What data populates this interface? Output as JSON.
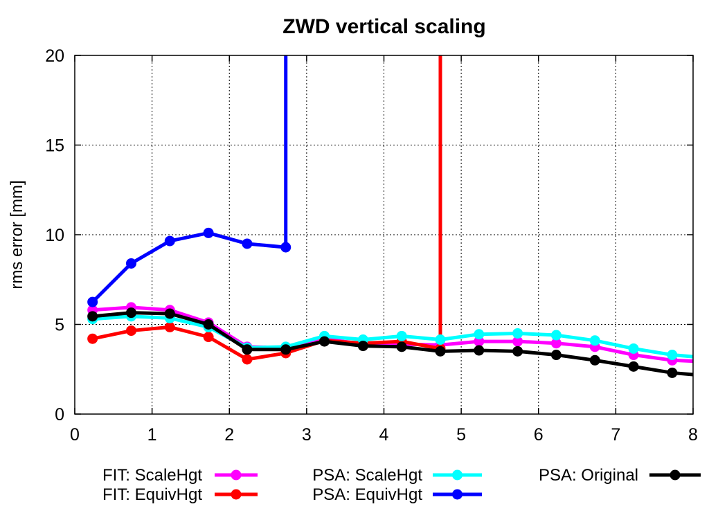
{
  "chart_data": {
    "type": "line",
    "title": "ZWD vertical scaling",
    "xlabel": "",
    "ylabel": "rms error [mm]",
    "xlim": [
      0,
      8
    ],
    "ylim": [
      0,
      20
    ],
    "xticks": [
      "0",
      "1",
      "2",
      "3",
      "4",
      "5",
      "6",
      "7",
      "8"
    ],
    "yticks": [
      "0",
      "5",
      "10",
      "15",
      "20"
    ],
    "grid": true,
    "legend_position": "bottom",
    "series": [
      {
        "name": "FIT: ScaleHgt",
        "color": "#ff00ff",
        "points": [
          [
            0.23,
            5.8
          ],
          [
            0.73,
            5.95
          ],
          [
            1.23,
            5.8
          ],
          [
            1.73,
            5.1
          ],
          [
            2.23,
            3.75
          ],
          [
            2.73,
            3.7
          ],
          [
            3.23,
            4.2
          ],
          [
            3.73,
            3.9
          ],
          [
            4.23,
            3.9
          ],
          [
            4.73,
            3.85
          ],
          [
            5.23,
            4.05
          ],
          [
            5.73,
            4.05
          ],
          [
            6.23,
            3.95
          ],
          [
            6.73,
            3.75
          ],
          [
            7.23,
            3.3
          ],
          [
            7.73,
            3.0
          ],
          [
            8.0,
            2.95
          ]
        ],
        "spike_x": null
      },
      {
        "name": "FIT: EquivHgt",
        "color": "#ff0000",
        "points": [
          [
            0.23,
            4.2
          ],
          [
            0.73,
            4.65
          ],
          [
            1.23,
            4.85
          ],
          [
            1.73,
            4.3
          ],
          [
            2.23,
            3.05
          ],
          [
            2.73,
            3.4
          ],
          [
            3.23,
            4.1
          ],
          [
            3.73,
            3.95
          ],
          [
            4.23,
            4.05
          ],
          [
            4.73,
            3.65
          ]
        ],
        "spike_x": 4.73
      },
      {
        "name": "PSA: ScaleHgt",
        "color": "#00ffff",
        "points": [
          [
            0.23,
            5.3
          ],
          [
            0.73,
            5.45
          ],
          [
            1.23,
            5.35
          ],
          [
            1.73,
            4.85
          ],
          [
            2.23,
            3.7
          ],
          [
            2.73,
            3.75
          ],
          [
            3.23,
            4.35
          ],
          [
            3.73,
            4.15
          ],
          [
            4.23,
            4.35
          ],
          [
            4.73,
            4.15
          ],
          [
            5.23,
            4.45
          ],
          [
            5.73,
            4.5
          ],
          [
            6.23,
            4.4
          ],
          [
            6.73,
            4.1
          ],
          [
            7.23,
            3.65
          ],
          [
            7.73,
            3.3
          ],
          [
            8.0,
            3.2
          ]
        ],
        "spike_x": null
      },
      {
        "name": "PSA: EquivHgt",
        "color": "#0000ff",
        "points": [
          [
            0.23,
            6.25
          ],
          [
            0.73,
            8.4
          ],
          [
            1.23,
            9.65
          ],
          [
            1.73,
            10.1
          ],
          [
            2.23,
            9.5
          ],
          [
            2.73,
            9.3
          ]
        ],
        "spike_x": 2.73
      },
      {
        "name": "PSA: Original",
        "color": "#000000",
        "points": [
          [
            0.23,
            5.45
          ],
          [
            0.73,
            5.65
          ],
          [
            1.23,
            5.6
          ],
          [
            1.73,
            5.0
          ],
          [
            2.23,
            3.6
          ],
          [
            2.73,
            3.6
          ],
          [
            3.23,
            4.05
          ],
          [
            3.73,
            3.8
          ],
          [
            4.23,
            3.75
          ],
          [
            4.73,
            3.5
          ],
          [
            5.23,
            3.55
          ],
          [
            5.73,
            3.5
          ],
          [
            6.23,
            3.3
          ],
          [
            6.73,
            3.0
          ],
          [
            7.23,
            2.65
          ],
          [
            7.73,
            2.3
          ],
          [
            8.0,
            2.2
          ]
        ],
        "spike_x": null
      }
    ]
  }
}
